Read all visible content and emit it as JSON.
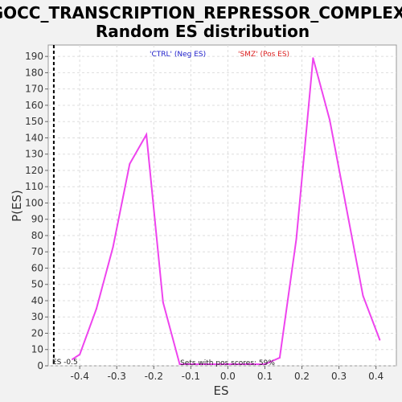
{
  "chart_data": {
    "type": "line",
    "title_line1": "GOCC_TRANSCRIPTION_REPRESSOR_COMPLEX:",
    "title_line2": "Random ES distribution",
    "xlabel": "ES",
    "ylabel": "P(ES)",
    "xlim": [
      -0.485,
      0.455
    ],
    "ylim": [
      0,
      197
    ],
    "x_ticks": [
      -0.4,
      -0.3,
      -0.2,
      -0.1,
      0.0,
      0.1,
      0.2,
      0.3,
      0.4
    ],
    "x_tick_labels": [
      "-0.4",
      "-0.3",
      "-0.2",
      "-0.1",
      "0.0",
      "0.1",
      "0.2",
      "0.3",
      "0.4"
    ],
    "y_ticks": [
      0,
      10,
      20,
      30,
      40,
      50,
      60,
      70,
      80,
      90,
      100,
      110,
      120,
      130,
      140,
      150,
      160,
      170,
      180,
      190
    ],
    "grid": true,
    "legend": [
      {
        "label": "'CTRL' (Neg ES)",
        "color": "#2222cc"
      },
      {
        "label": "'SMZ' (Pos ES)",
        "color": "#dd2222"
      }
    ],
    "series": [
      {
        "color": "#ee44ee",
        "x": [
          -0.42,
          -0.4,
          -0.355,
          -0.31,
          -0.265,
          -0.22,
          -0.175,
          -0.13,
          0.1,
          0.14,
          0.185,
          0.23,
          0.275,
          0.32,
          0.365,
          0.41
        ],
        "y": [
          4,
          7,
          35,
          73,
          124,
          142,
          39,
          1,
          1,
          5,
          78,
          189,
          151,
          97,
          43,
          16
        ]
      }
    ],
    "marker_line": {
      "x": -0.47,
      "label": "ES -0.5"
    },
    "annotation": "Sets with pos scores: 59%"
  }
}
